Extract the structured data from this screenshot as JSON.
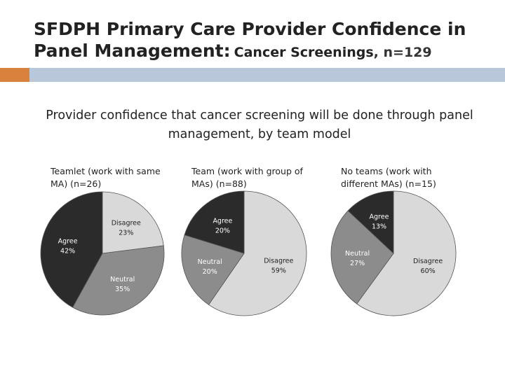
{
  "slide": {
    "title_part1": "SFDPH Primary Care Provider Confidence in Panel Management:",
    "title_part2": "Cancer Screenings",
    "title_part3": ", n=129",
    "subtitle": "Provider confidence that cancer screening will be done through panel management, by team model"
  },
  "colors": {
    "agree": "#2b2b2b",
    "disagree": "#d9d9d9",
    "neutral": "#8c8c8c",
    "accent": "#d9823e",
    "bar": "#b8c7d9"
  },
  "chart_data": [
    {
      "type": "pie",
      "title": "Teamlet (work with same MA) (n=26)",
      "categories": [
        "Disagree",
        "Neutral",
        "Agree"
      ],
      "values": [
        23,
        35,
        42
      ],
      "value_labels": [
        "23%",
        "35%",
        "42%"
      ]
    },
    {
      "type": "pie",
      "title": "Team (work with group of MAs) (n=88)",
      "categories": [
        "Disagree",
        "Neutral",
        "Agree"
      ],
      "values": [
        59,
        20,
        20
      ],
      "value_labels": [
        "59%",
        "20%",
        "20%"
      ]
    },
    {
      "type": "pie",
      "title": "No teams (work with different MAs) (n=15)",
      "categories": [
        "Disagree",
        "Neutral",
        "Agree"
      ],
      "values": [
        60,
        27,
        13
      ],
      "value_labels": [
        "60%",
        "27%",
        "13%"
      ]
    }
  ]
}
